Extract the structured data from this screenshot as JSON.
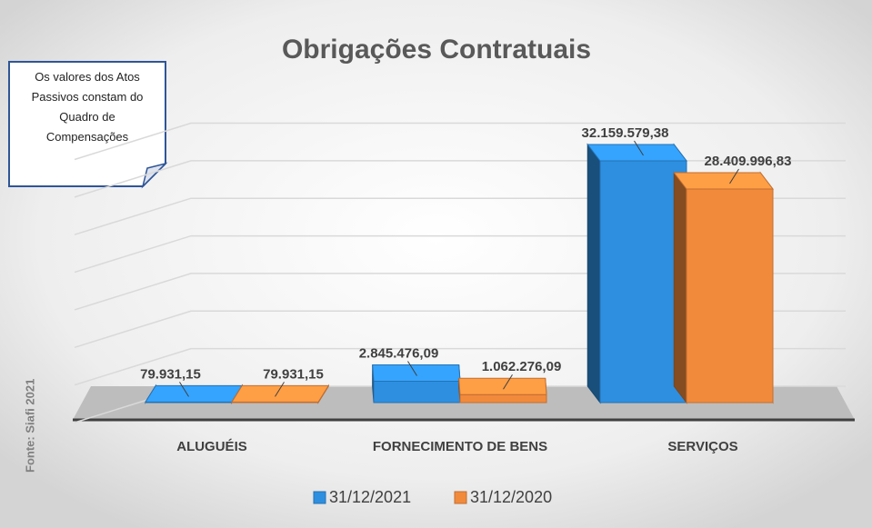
{
  "chart_data": {
    "type": "bar",
    "title": "Obrigações Contratuais",
    "categories": [
      "ALUGUÉIS",
      "FORNECIMENTO DE BENS",
      "SERVIÇOS"
    ],
    "series": [
      {
        "name": "31/12/2021",
        "color": "#2e8fe0",
        "values": [
          79931.15,
          2845476.09,
          32159579.38
        ],
        "value_labels": [
          "79.931,15",
          "2.845.476,09",
          "32.159.579,38"
        ]
      },
      {
        "name": "31/12/2020",
        "color": "#f28a3c",
        "values": [
          79931.15,
          1062276.09,
          28409996.83
        ],
        "value_labels": [
          "79.931,15",
          "1.062.276,09",
          "28.409.996,83"
        ]
      }
    ],
    "ylim": [
      0,
      35000000
    ],
    "yticks": [
      0,
      5000000,
      10000000,
      15000000,
      20000000,
      25000000,
      30000000,
      35000000
    ],
    "grid": true,
    "annotation": "Os valores dos Atos Passivos constam do Quadro de Compensações",
    "source": "Fonte: Siafi 2021",
    "legend": "bottom"
  }
}
